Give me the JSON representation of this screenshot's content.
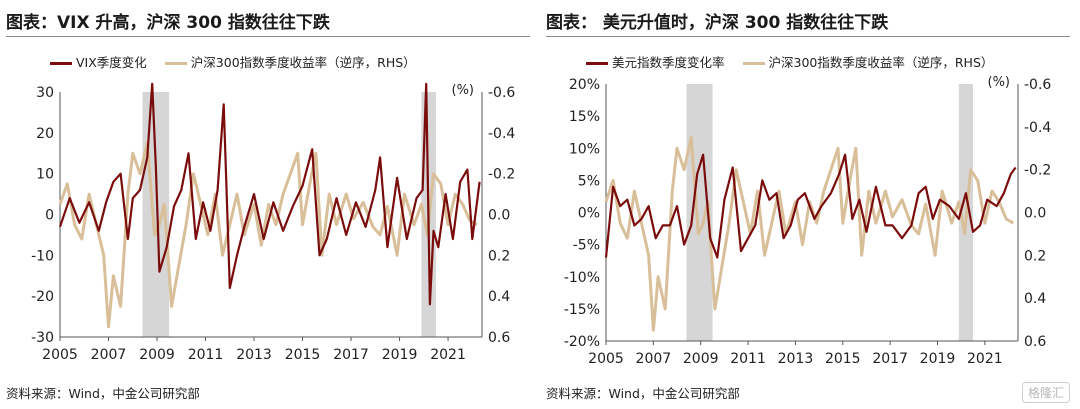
{
  "colors": {
    "dark": "#7a0c0c",
    "light": "#d9bf99",
    "shade": "#d6d6d6"
  },
  "chart_data": [
    {
      "type": "line",
      "title": "图表：VIX 升高，沪深 300 指数往往下跌",
      "source": "资料来源：Wind，中金公司研究部",
      "x_ticks": [
        "2005",
        "2007",
        "2009",
        "2011",
        "2013",
        "2015",
        "2017",
        "2019",
        "2021"
      ],
      "xlim": [
        2005,
        2022.4
      ],
      "left_axis": {
        "ylim": [
          -30,
          30
        ],
        "ticks": [
          "30",
          "20",
          "10",
          "0",
          "-10",
          "-20",
          "-30"
        ]
      },
      "right_axis": {
        "ylim": [
          0.6,
          -0.6
        ],
        "unit": "(%)",
        "ticks": [
          "-0.6",
          "-0.4",
          "-0.2",
          "0.0",
          "0.2",
          "0.4",
          "0.6"
        ]
      },
      "legend_position": "top",
      "shaded_periods": [
        [
          2008.4,
          2009.5
        ],
        [
          2019.9,
          2020.5
        ]
      ],
      "series": [
        {
          "name": "VIX季度变化",
          "axis": "left",
          "x": [
            2005.0,
            2005.4,
            2005.8,
            2006.2,
            2006.6,
            2006.9,
            2007.2,
            2007.5,
            2007.8,
            2008.0,
            2008.3,
            2008.6,
            2008.8,
            2008.95,
            2009.1,
            2009.4,
            2009.7,
            2010.0,
            2010.3,
            2010.6,
            2010.9,
            2011.2,
            2011.5,
            2011.75,
            2012.0,
            2012.3,
            2012.6,
            2013.0,
            2013.4,
            2013.8,
            2014.2,
            2014.6,
            2015.0,
            2015.4,
            2015.7,
            2016.0,
            2016.4,
            2016.8,
            2017.2,
            2017.6,
            2018.0,
            2018.2,
            2018.5,
            2018.9,
            2019.3,
            2019.7,
            2019.95,
            2020.1,
            2020.25,
            2020.4,
            2020.6,
            2020.9,
            2021.2,
            2021.5,
            2021.8,
            2022.0,
            2022.3
          ],
          "y": [
            -3,
            4,
            -2,
            3,
            -4,
            3,
            8,
            10,
            -6,
            4,
            6,
            14,
            32,
            12,
            -14,
            -8,
            2,
            6,
            15,
            -6,
            3,
            -4,
            6,
            27,
            -18,
            -10,
            -3,
            5,
            -6,
            3,
            -4,
            2,
            7,
            16,
            -10,
            -6,
            4,
            -5,
            3,
            -3,
            6,
            14,
            -8,
            9,
            -6,
            4,
            6,
            32,
            -22,
            -4,
            -8,
            5,
            -6,
            8,
            11,
            -6,
            8
          ]
        },
        {
          "name": "沪深300指数季度收益率（逆序，RHS）",
          "axis": "right",
          "x": [
            2005.0,
            2005.3,
            2005.6,
            2005.9,
            2006.2,
            2006.5,
            2006.8,
            2007.0,
            2007.2,
            2007.5,
            2007.8,
            2008.0,
            2008.3,
            2008.6,
            2008.9,
            2009.1,
            2009.3,
            2009.6,
            2009.9,
            2010.2,
            2010.5,
            2010.8,
            2011.1,
            2011.4,
            2011.7,
            2012.0,
            2012.3,
            2012.6,
            2013.0,
            2013.3,
            2013.6,
            2013.9,
            2014.2,
            2014.5,
            2014.8,
            2015.0,
            2015.3,
            2015.55,
            2015.8,
            2016.1,
            2016.4,
            2016.8,
            2017.1,
            2017.5,
            2017.9,
            2018.2,
            2018.5,
            2018.9,
            2019.2,
            2019.6,
            2019.9,
            2020.15,
            2020.4,
            2020.7,
            2021.0,
            2021.3,
            2021.6,
            2021.9,
            2022.2
          ],
          "y": [
            -0.05,
            -0.15,
            0.05,
            0.12,
            -0.1,
            0.05,
            0.2,
            0.55,
            0.3,
            0.45,
            -0.1,
            -0.3,
            -0.2,
            -0.35,
            0.1,
            0.05,
            -0.05,
            0.45,
            0.25,
            0.05,
            -0.2,
            -0.05,
            0.1,
            -0.1,
            0.2,
            0.05,
            -0.1,
            0.1,
            -0.05,
            0.15,
            -0.05,
            0.05,
            -0.1,
            -0.2,
            -0.3,
            0.05,
            -0.15,
            -0.3,
            0.2,
            -0.1,
            0.05,
            -0.1,
            0.02,
            -0.06,
            0.06,
            0.1,
            -0.04,
            0.2,
            -0.1,
            0.05,
            -0.05,
            0.1,
            -0.2,
            -0.15,
            0.05,
            -0.1,
            -0.05,
            0.03,
            0.05
          ]
        }
      ]
    },
    {
      "type": "line",
      "title": "图表： 美元升值时，沪深 300 指数往往下跌",
      "source": "资料来源：Wind，中金公司研究部",
      "x_ticks": [
        "2005",
        "2007",
        "2009",
        "2011",
        "2013",
        "2015",
        "2017",
        "2019",
        "2021"
      ],
      "xlim": [
        2005,
        2022.4
      ],
      "left_axis": {
        "ylim": [
          -20,
          20
        ],
        "ticks": [
          "20%",
          "15%",
          "10%",
          "5%",
          "0%",
          "-5%",
          "-10%",
          "-15%",
          "-20%"
        ]
      },
      "right_axis": {
        "ylim": [
          0.6,
          -0.6
        ],
        "unit": "(%)",
        "ticks": [
          "-0.6",
          "-0.4",
          "-0.2",
          "0.0",
          "0.2",
          "0.4",
          "0.6"
        ]
      },
      "legend_position": "top",
      "shaded_periods": [
        [
          2008.4,
          2009.5
        ],
        [
          2019.9,
          2020.5
        ]
      ],
      "series": [
        {
          "name": "美元指数季度变化率",
          "axis": "left",
          "x": [
            2005.0,
            2005.3,
            2005.6,
            2005.9,
            2006.2,
            2006.5,
            2006.8,
            2007.1,
            2007.4,
            2007.7,
            2008.0,
            2008.3,
            2008.6,
            2008.85,
            2009.1,
            2009.4,
            2009.7,
            2010.0,
            2010.35,
            2010.7,
            2011.0,
            2011.3,
            2011.6,
            2011.9,
            2012.2,
            2012.5,
            2012.8,
            2013.1,
            2013.4,
            2013.8,
            2014.1,
            2014.5,
            2014.85,
            2015.1,
            2015.4,
            2015.7,
            2016.0,
            2016.4,
            2016.8,
            2017.1,
            2017.5,
            2017.9,
            2018.2,
            2018.5,
            2018.8,
            2019.1,
            2019.5,
            2019.9,
            2020.2,
            2020.5,
            2020.8,
            2021.1,
            2021.5,
            2021.8,
            2022.1,
            2022.3
          ],
          "y": [
            -7,
            4,
            1,
            2,
            -2,
            -1,
            1,
            -4,
            -2,
            -2,
            1,
            -5,
            -2,
            6,
            9,
            -4,
            -7,
            2,
            7,
            -6,
            -4,
            -2,
            5,
            2,
            3,
            -4,
            -2,
            2,
            3,
            -1,
            1,
            3,
            6,
            9,
            -1,
            2,
            -3,
            4,
            -2,
            -2,
            -4,
            -2,
            3,
            4,
            -1,
            2,
            1,
            -1,
            3,
            -3,
            -2,
            2,
            1,
            3,
            6,
            7
          ]
        },
        {
          "name": "沪深300指数季度收益率（逆序，RHS）",
          "axis": "right",
          "x": [
            2005.0,
            2005.3,
            2005.6,
            2005.9,
            2006.2,
            2006.5,
            2006.8,
            2007.0,
            2007.2,
            2007.5,
            2007.8,
            2008.0,
            2008.3,
            2008.6,
            2008.9,
            2009.1,
            2009.3,
            2009.6,
            2009.9,
            2010.2,
            2010.5,
            2010.8,
            2011.1,
            2011.4,
            2011.7,
            2012.0,
            2012.3,
            2012.6,
            2013.0,
            2013.3,
            2013.6,
            2013.9,
            2014.2,
            2014.5,
            2014.8,
            2015.0,
            2015.3,
            2015.55,
            2015.8,
            2016.1,
            2016.4,
            2016.8,
            2017.1,
            2017.5,
            2017.9,
            2018.2,
            2018.5,
            2018.9,
            2019.2,
            2019.6,
            2019.9,
            2020.15,
            2020.4,
            2020.7,
            2021.0,
            2021.3,
            2021.6,
            2021.9,
            2022.2
          ],
          "y": [
            -0.05,
            -0.15,
            0.05,
            0.12,
            -0.1,
            0.05,
            0.2,
            0.55,
            0.3,
            0.45,
            -0.1,
            -0.3,
            -0.2,
            -0.35,
            0.1,
            0.05,
            -0.05,
            0.45,
            0.25,
            0.05,
            -0.2,
            -0.05,
            0.1,
            -0.1,
            0.2,
            0.05,
            -0.1,
            0.1,
            -0.05,
            0.15,
            -0.05,
            0.05,
            -0.1,
            -0.2,
            -0.3,
            0.05,
            -0.15,
            -0.3,
            0.2,
            -0.1,
            0.05,
            -0.1,
            0.02,
            -0.06,
            0.06,
            0.1,
            -0.04,
            0.2,
            -0.1,
            0.05,
            -0.05,
            0.1,
            -0.2,
            -0.15,
            0.05,
            -0.1,
            -0.05,
            0.03,
            0.05
          ]
        }
      ]
    }
  ],
  "watermark": {
    "text": "格隆汇"
  }
}
